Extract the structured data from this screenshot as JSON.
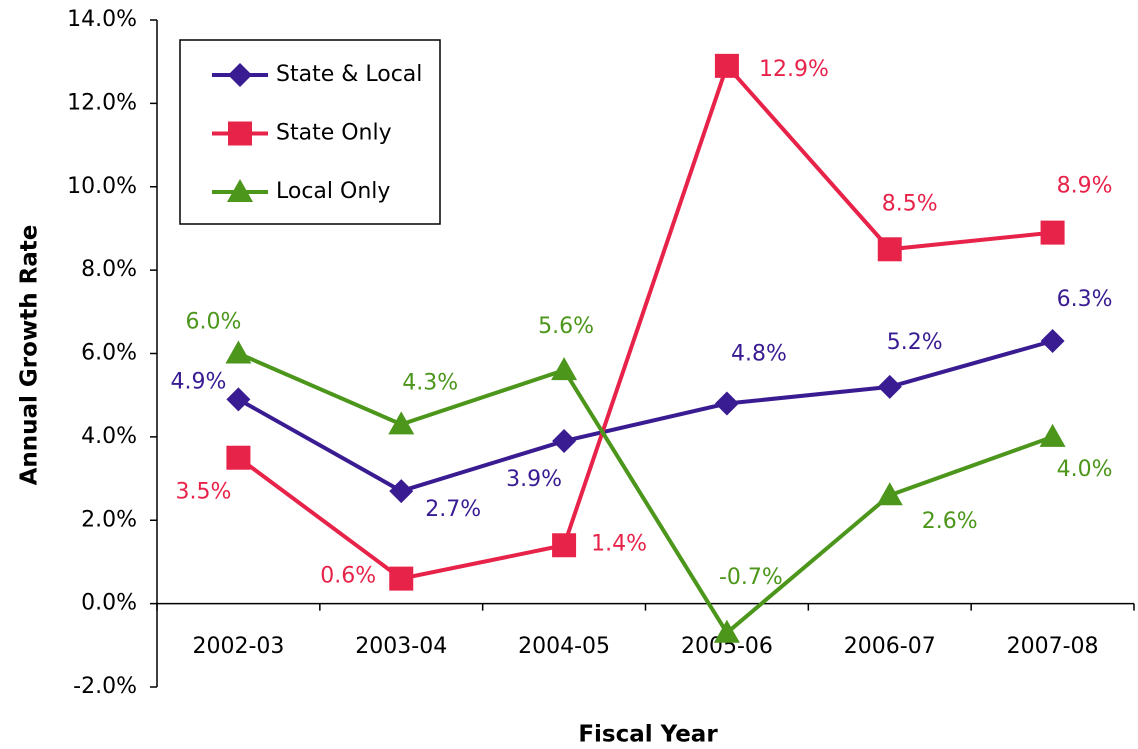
{
  "chart_data": {
    "type": "line",
    "x_label": "Fiscal Year",
    "y_label": "Annual Growth Rate",
    "categories": [
      "2002-03",
      "2003-04",
      "2004-05",
      "2005-06",
      "2006-07",
      "2007-08"
    ],
    "series": [
      {
        "name": "State & Local",
        "color": "#3a1c92",
        "marker": "diamond",
        "values": [
          4.9,
          2.7,
          3.9,
          4.8,
          5.2,
          6.3
        ],
        "value_labels": [
          "4.9%",
          "2.7%",
          "3.9%",
          "4.8%",
          "5.2%",
          "6.3%"
        ]
      },
      {
        "name": "State Only",
        "color": "#e8234a",
        "marker": "square",
        "values": [
          3.5,
          0.6,
          1.4,
          12.9,
          8.5,
          8.9
        ],
        "value_labels": [
          "3.5%",
          "0.6%",
          "1.4%",
          "12.9%",
          "8.5%",
          "8.9%"
        ]
      },
      {
        "name": "Local Only",
        "color": "#4b961b",
        "marker": "triangle",
        "values": [
          6.0,
          4.3,
          5.6,
          -0.7,
          2.6,
          4.0
        ],
        "value_labels": [
          "6.0%",
          "4.3%",
          "5.6%",
          "-0.7%",
          "2.6%",
          "4.0%"
        ]
      }
    ],
    "ylim": [
      -2,
      14
    ],
    "yticks": [
      {
        "value": -2,
        "label": "-2.0%"
      },
      {
        "value": 0,
        "label": "0.0%"
      },
      {
        "value": 2,
        "label": "2.0%"
      },
      {
        "value": 4,
        "label": "4.0%"
      },
      {
        "value": 6,
        "label": "6.0%"
      },
      {
        "value": 8,
        "label": "8.0%"
      },
      {
        "value": 10,
        "label": "10.0%"
      },
      {
        "value": 12,
        "label": "12.0%"
      },
      {
        "value": 14,
        "label": "14.0%"
      }
    ],
    "grid": false,
    "legend": "upper left"
  }
}
